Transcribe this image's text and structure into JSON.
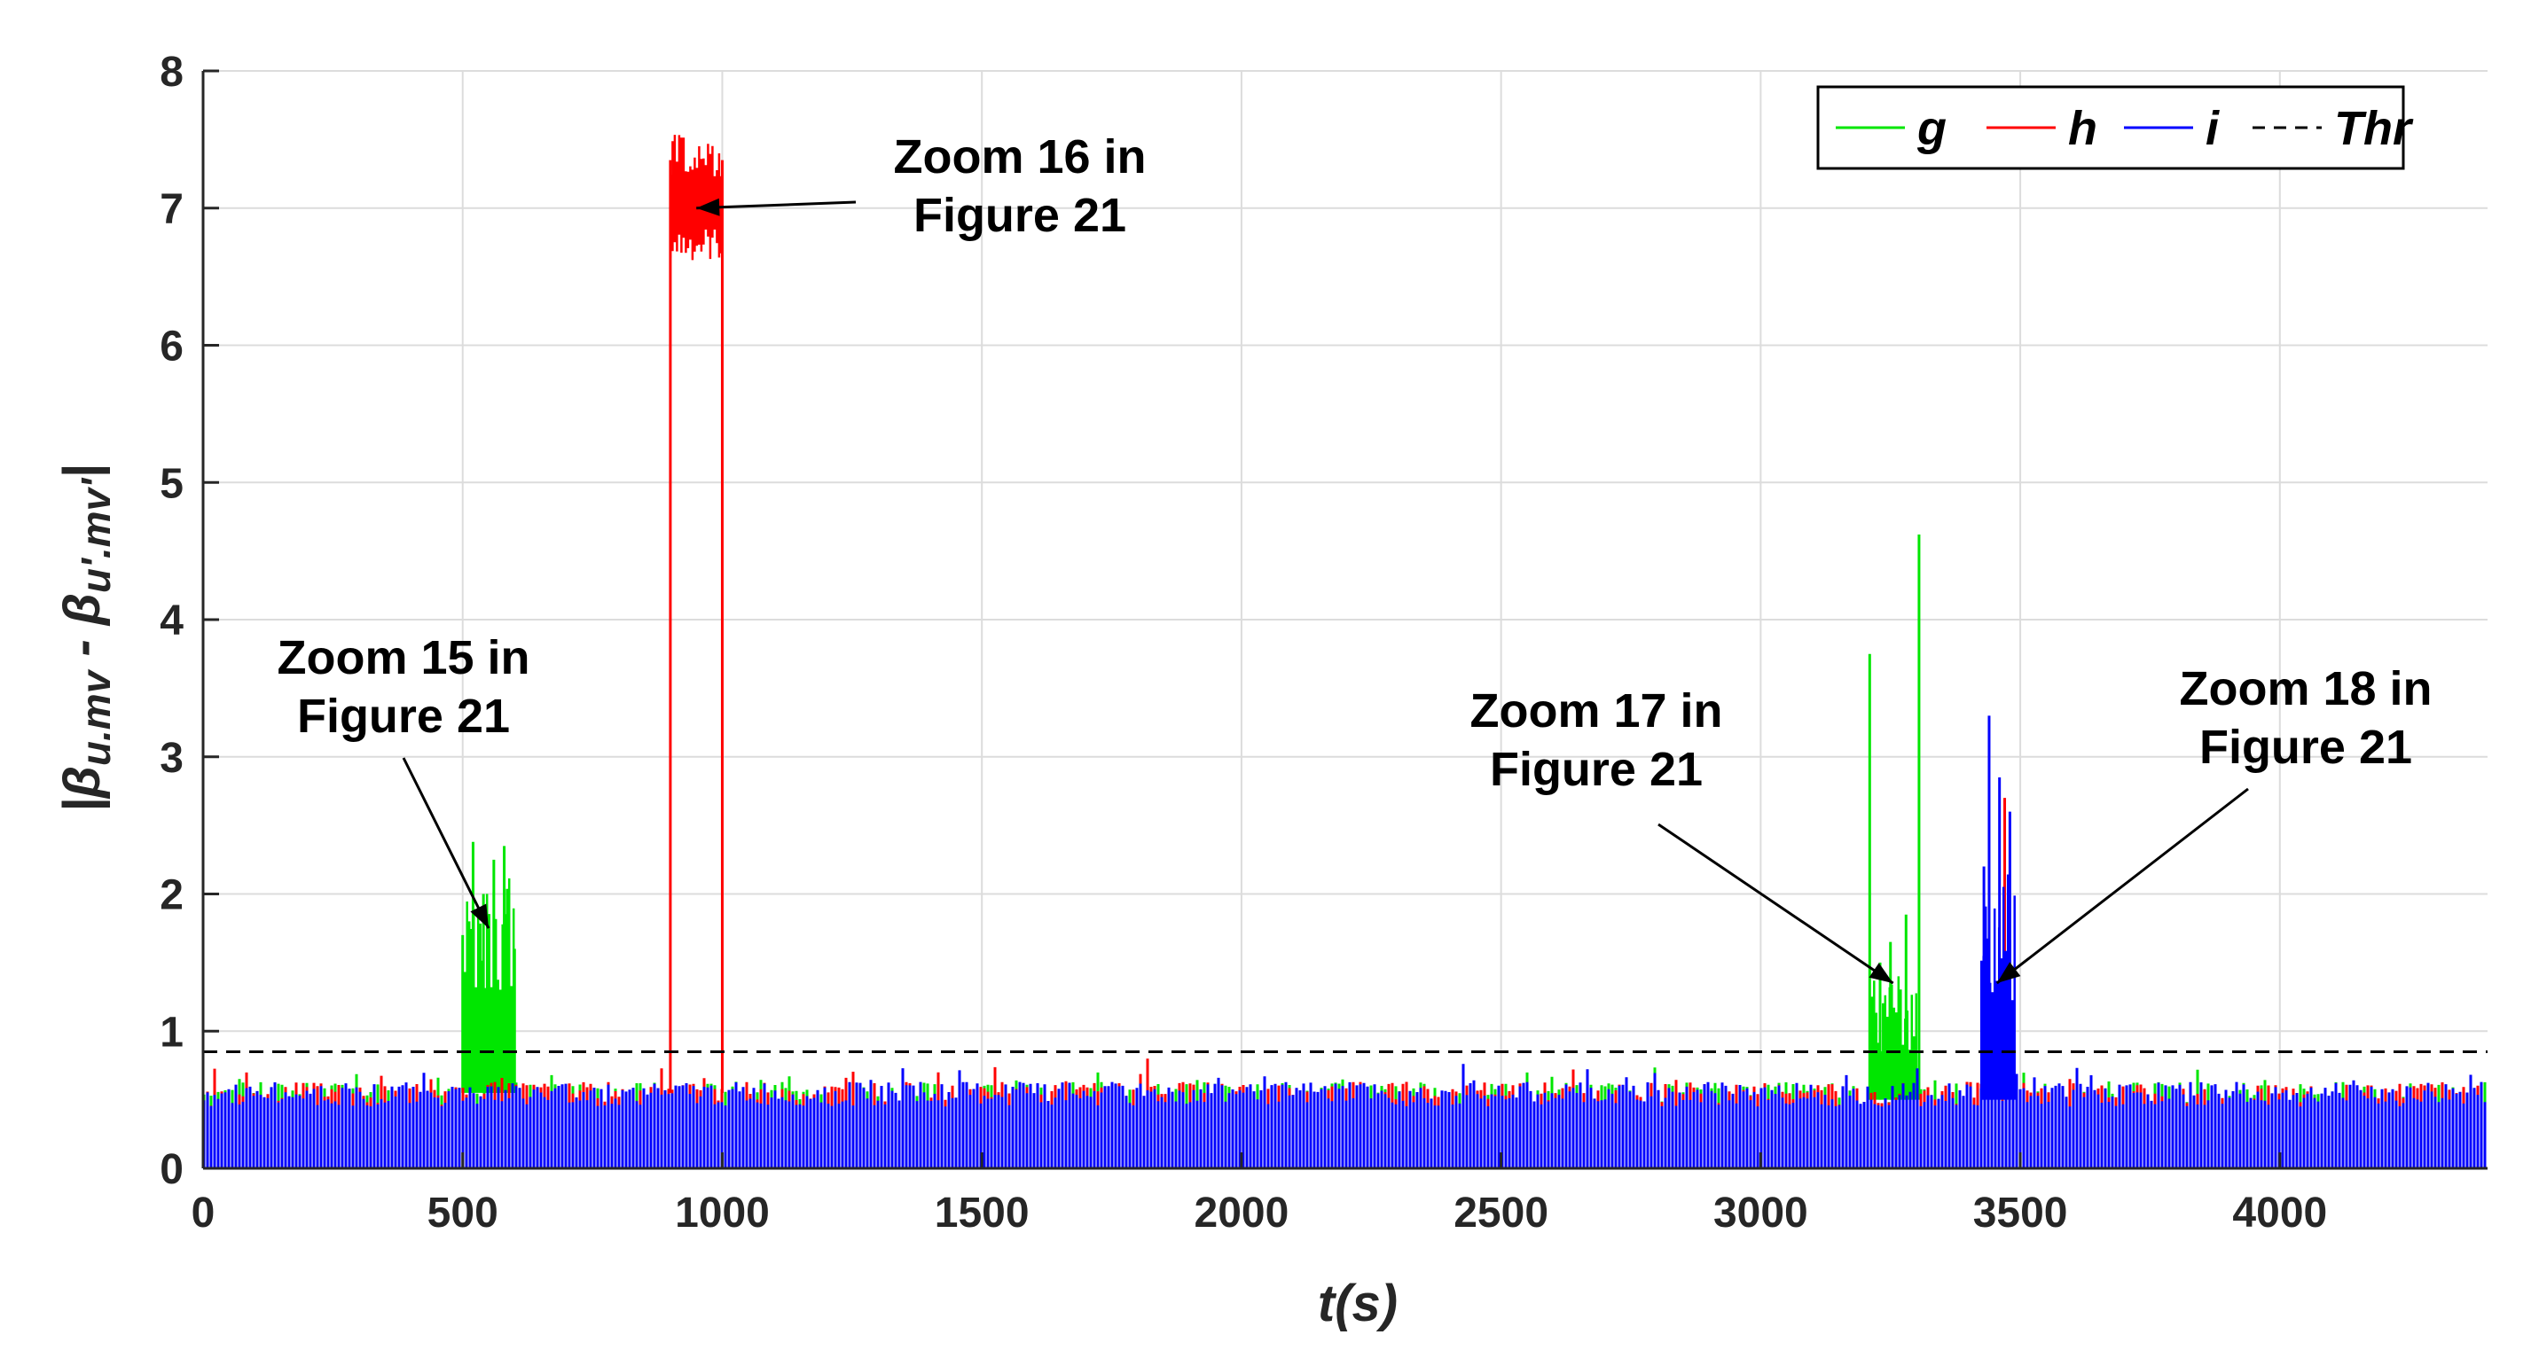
{
  "chart_data": {
    "type": "line",
    "xlabel": "t(s)",
    "ylabel": {
      "open": "|",
      "sym1": "β",
      "sub1": "u.mv",
      "mid": " - ",
      "sym2": "β",
      "sub2": "u'.mv'",
      "close": "|"
    },
    "xlim": [
      0,
      4400
    ],
    "ylim": [
      0,
      8
    ],
    "x_ticks": [
      "0",
      "500",
      "1000",
      "1500",
      "2000",
      "2500",
      "3000",
      "3500",
      "4000"
    ],
    "y_ticks": [
      "0",
      "1",
      "2",
      "3",
      "4",
      "5",
      "6",
      "7",
      "8"
    ],
    "grid": true,
    "legend_position": "top-right",
    "threshold": 0.85,
    "series": [
      {
        "name": "g",
        "color": "#00e600",
        "baseline_peaks": [
          [
            0,
            0.55
          ],
          [
            100,
            0.6
          ],
          [
            200,
            0.58
          ],
          [
            300,
            0.6
          ],
          [
            400,
            0.62
          ],
          [
            480,
            0.6
          ]
        ],
        "bursts": [
          [
            500,
            0.55,
            1.7
          ],
          [
            520,
            0.55,
            2.38
          ],
          [
            540,
            0.55,
            2.0
          ],
          [
            560,
            0.55,
            2.25
          ],
          [
            580,
            0.55,
            2.35
          ],
          [
            600,
            0.55,
            1.6
          ],
          [
            3210,
            0.5,
            3.75
          ],
          [
            3230,
            0.5,
            1.5
          ],
          [
            3250,
            0.5,
            1.65
          ],
          [
            3280,
            0.5,
            1.85
          ],
          [
            3305,
            0.5,
            4.62
          ]
        ]
      },
      {
        "name": "h",
        "color": "#ff0000",
        "baseline_peaks": [
          [
            0,
            0.55
          ],
          [
            700,
            0.6
          ],
          [
            1500,
            0.58
          ]
        ],
        "bursts": [
          [
            900,
            0.55,
            7.35
          ],
          [
            1000,
            0.55,
            7.35
          ],
          [
            3470,
            0.5,
            2.7
          ]
        ],
        "plateau": {
          "x_start": 900,
          "x_end": 1000,
          "low": 6.6,
          "high": 7.55
        }
      },
      {
        "name": "i",
        "color": "#0000ff",
        "baseline_peaks": [
          [
            0,
            0.55
          ],
          [
            1000,
            0.6
          ],
          [
            2000,
            0.58
          ],
          [
            4400,
            0.55
          ]
        ],
        "bursts": [
          [
            3430,
            0.5,
            2.2
          ],
          [
            3440,
            0.5,
            3.3
          ],
          [
            3460,
            0.5,
            2.85
          ],
          [
            3480,
            0.5,
            2.6
          ]
        ]
      },
      {
        "name": "Thr",
        "color": "#000000",
        "dash": true
      }
    ],
    "annotations": [
      {
        "lines": [
          "Zoom 15 in",
          "Figure 21"
        ],
        "target": [
          550,
          1.75
        ]
      },
      {
        "lines": [
          "Zoom 16 in",
          "Figure 21"
        ],
        "target": [
          950,
          7.0
        ]
      },
      {
        "lines": [
          "Zoom 17 in",
          "Figure 21"
        ],
        "target": [
          3255,
          1.35
        ]
      },
      {
        "lines": [
          "Zoom 18 in",
          "Figure 21"
        ],
        "target": [
          3455,
          1.35
        ]
      }
    ]
  }
}
